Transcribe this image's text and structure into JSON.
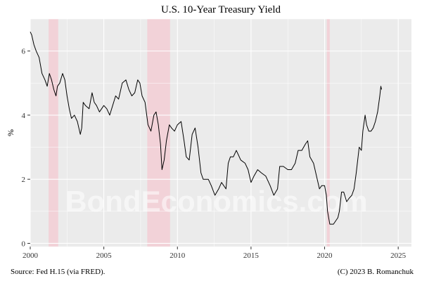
{
  "chart_data": {
    "type": "line",
    "title": "U.S. 10-Year Treasury Yield",
    "xlabel": "",
    "ylabel": "%",
    "xlim": [
      2000,
      2025.9
    ],
    "ylim": [
      -0.1,
      7.0
    ],
    "x_ticks": [
      2000,
      2005,
      2010,
      2015,
      2020,
      2025
    ],
    "y_ticks": [
      0,
      2,
      4,
      6
    ],
    "grid": true,
    "legend": "none",
    "recessions": [
      {
        "start": 2001.25,
        "end": 2001.9
      },
      {
        "start": 2007.95,
        "end": 2009.5
      },
      {
        "start": 2020.15,
        "end": 2020.35
      }
    ],
    "series": [
      {
        "color": "#000000",
        "x": [
          2000.0,
          2000.1,
          2000.25,
          2000.4,
          2000.6,
          2000.8,
          2001.0,
          2001.15,
          2001.3,
          2001.45,
          2001.6,
          2001.75,
          2001.85,
          2002.0,
          2002.2,
          2002.35,
          2002.5,
          2002.65,
          2002.8,
          2003.0,
          2003.2,
          2003.4,
          2003.5,
          2003.6,
          2003.75,
          2004.0,
          2004.2,
          2004.35,
          2004.5,
          2004.7,
          2005.0,
          2005.2,
          2005.4,
          2005.6,
          2005.8,
          2006.0,
          2006.25,
          2006.5,
          2006.7,
          2006.9,
          2007.1,
          2007.3,
          2007.45,
          2007.6,
          2007.8,
          2008.0,
          2008.2,
          2008.4,
          2008.55,
          2008.7,
          2008.85,
          2008.95,
          2009.1,
          2009.25,
          2009.45,
          2009.6,
          2009.8,
          2010.0,
          2010.25,
          2010.45,
          2010.6,
          2010.8,
          2011.0,
          2011.2,
          2011.4,
          2011.6,
          2011.75,
          2011.9,
          2012.1,
          2012.3,
          2012.55,
          2012.8,
          2013.0,
          2013.3,
          2013.45,
          2013.6,
          2013.8,
          2014.0,
          2014.3,
          2014.6,
          2014.8,
          2015.0,
          2015.2,
          2015.45,
          2015.7,
          2016.0,
          2016.3,
          2016.55,
          2016.8,
          2016.95,
          2017.2,
          2017.5,
          2017.75,
          2018.0,
          2018.2,
          2018.45,
          2018.7,
          2018.85,
          2019.0,
          2019.25,
          2019.45,
          2019.65,
          2019.8,
          2020.0,
          2020.12,
          2020.2,
          2020.35,
          2020.6,
          2020.9,
          2021.0,
          2021.15,
          2021.3,
          2021.5,
          2021.65,
          2021.85,
          2022.0,
          2022.15,
          2022.35,
          2022.5,
          2022.6,
          2022.75,
          2022.85,
          2023.0,
          2023.15,
          2023.3,
          2023.45,
          2023.6,
          2023.75,
          2023.82,
          2023.87
        ],
        "y": [
          6.6,
          6.5,
          6.2,
          6.0,
          5.8,
          5.3,
          5.1,
          4.9,
          5.3,
          5.1,
          4.8,
          4.6,
          4.9,
          5.0,
          5.3,
          5.1,
          4.6,
          4.2,
          3.9,
          4.0,
          3.8,
          3.4,
          3.6,
          4.4,
          4.3,
          4.2,
          4.7,
          4.4,
          4.3,
          4.1,
          4.3,
          4.2,
          4.0,
          4.3,
          4.6,
          4.5,
          5.0,
          5.1,
          4.8,
          4.6,
          4.7,
          5.1,
          5.0,
          4.6,
          4.4,
          3.7,
          3.5,
          4.0,
          4.1,
          3.7,
          3.1,
          2.3,
          2.6,
          3.2,
          3.7,
          3.6,
          3.5,
          3.7,
          3.8,
          3.2,
          2.7,
          2.6,
          3.4,
          3.6,
          3.0,
          2.2,
          2.0,
          2.0,
          2.0,
          1.8,
          1.5,
          1.7,
          1.9,
          1.7,
          2.5,
          2.7,
          2.7,
          2.9,
          2.6,
          2.5,
          2.3,
          1.9,
          2.1,
          2.3,
          2.2,
          2.1,
          1.8,
          1.5,
          1.7,
          2.4,
          2.4,
          2.3,
          2.3,
          2.5,
          2.9,
          2.9,
          3.1,
          3.2,
          2.7,
          2.5,
          2.1,
          1.7,
          1.8,
          1.8,
          1.5,
          1.0,
          0.6,
          0.6,
          0.8,
          1.0,
          1.6,
          1.6,
          1.3,
          1.4,
          1.5,
          1.7,
          2.2,
          3.0,
          2.9,
          3.5,
          4.0,
          3.7,
          3.5,
          3.5,
          3.6,
          3.8,
          4.1,
          4.6,
          4.9,
          4.8
        ]
      }
    ]
  },
  "watermark": "BondEconomics.com",
  "footer": {
    "source": "Source: Fed H.15 (via FRED).",
    "credit": "(C) 2023 B. Romanchuk"
  }
}
